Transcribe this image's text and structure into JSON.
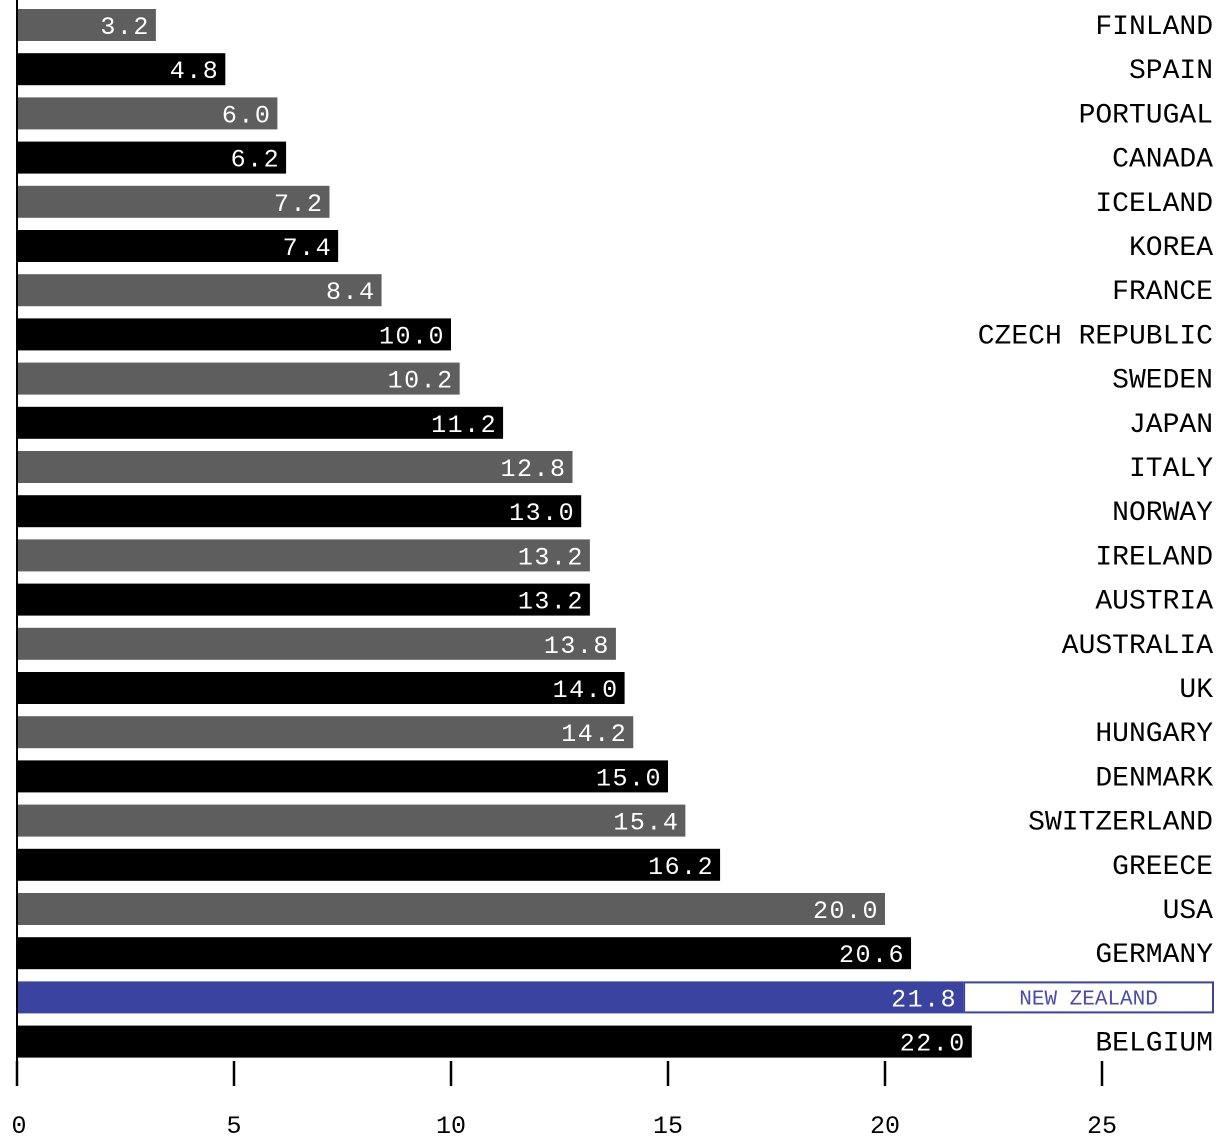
{
  "chart_data": {
    "type": "bar",
    "orientation": "horizontal",
    "title": "",
    "xlabel": "",
    "ylabel": "",
    "xlim": [
      0,
      28
    ],
    "x_ticks": [
      0,
      5,
      10,
      15,
      20,
      25
    ],
    "x_tick_labels": [
      "0",
      "5",
      "10",
      "15",
      "20",
      "25"
    ],
    "grid": false,
    "legend": "none",
    "colors": {
      "gray": "#5e5e5e",
      "black": "#000000",
      "highlight": "#3a44a0",
      "highlight_text": "#4a4aa8",
      "value_text": "#ffffff",
      "label_text": "#000000"
    },
    "bars": [
      {
        "category": "FINLAND",
        "value": 3.2,
        "value_label": "3.2",
        "color": "gray"
      },
      {
        "category": "SPAIN",
        "value": 4.8,
        "value_label": "4.8",
        "color": "black"
      },
      {
        "category": "PORTUGAL",
        "value": 6.0,
        "value_label": "6.0",
        "color": "gray"
      },
      {
        "category": "CANADA",
        "value": 6.2,
        "value_label": "6.2",
        "color": "black"
      },
      {
        "category": "ICELAND",
        "value": 7.2,
        "value_label": "7.2",
        "color": "gray"
      },
      {
        "category": "KOREA",
        "value": 7.4,
        "value_label": "7.4",
        "color": "black"
      },
      {
        "category": "FRANCE",
        "value": 8.4,
        "value_label": "8.4",
        "color": "gray"
      },
      {
        "category": "CZECH REPUBLIC",
        "value": 10.0,
        "value_label": "10.0",
        "color": "black"
      },
      {
        "category": "SWEDEN",
        "value": 10.2,
        "value_label": "10.2",
        "color": "gray"
      },
      {
        "category": "JAPAN",
        "value": 11.2,
        "value_label": "11.2",
        "color": "black"
      },
      {
        "category": "ITALY",
        "value": 12.8,
        "value_label": "12.8",
        "color": "gray"
      },
      {
        "category": "NORWAY",
        "value": 13.0,
        "value_label": "13.0",
        "color": "black"
      },
      {
        "category": "IRELAND",
        "value": 13.2,
        "value_label": "13.2",
        "color": "gray"
      },
      {
        "category": "AUSTRIA",
        "value": 13.2,
        "value_label": "13.2",
        "color": "black"
      },
      {
        "category": "AUSTRALIA",
        "value": 13.8,
        "value_label": "13.8",
        "color": "gray"
      },
      {
        "category": "UK",
        "value": 14.0,
        "value_label": "14.0",
        "color": "black"
      },
      {
        "category": "HUNGARY",
        "value": 14.2,
        "value_label": "14.2",
        "color": "gray"
      },
      {
        "category": "DENMARK",
        "value": 15.0,
        "value_label": "15.0",
        "color": "black"
      },
      {
        "category": "SWITZERLAND",
        "value": 15.4,
        "value_label": "15.4",
        "color": "gray"
      },
      {
        "category": "GREECE",
        "value": 16.2,
        "value_label": "16.2",
        "color": "black"
      },
      {
        "category": "USA",
        "value": 20.0,
        "value_label": "20.0",
        "color": "gray"
      },
      {
        "category": "GERMANY",
        "value": 20.6,
        "value_label": "20.6",
        "color": "black"
      },
      {
        "category": "NEW ZEALAND",
        "value": 21.8,
        "value_label": "21.8",
        "color": "highlight",
        "highlighted": true
      },
      {
        "category": "BELGIUM",
        "value": 22.0,
        "value_label": "22.0",
        "color": "black"
      }
    ]
  }
}
